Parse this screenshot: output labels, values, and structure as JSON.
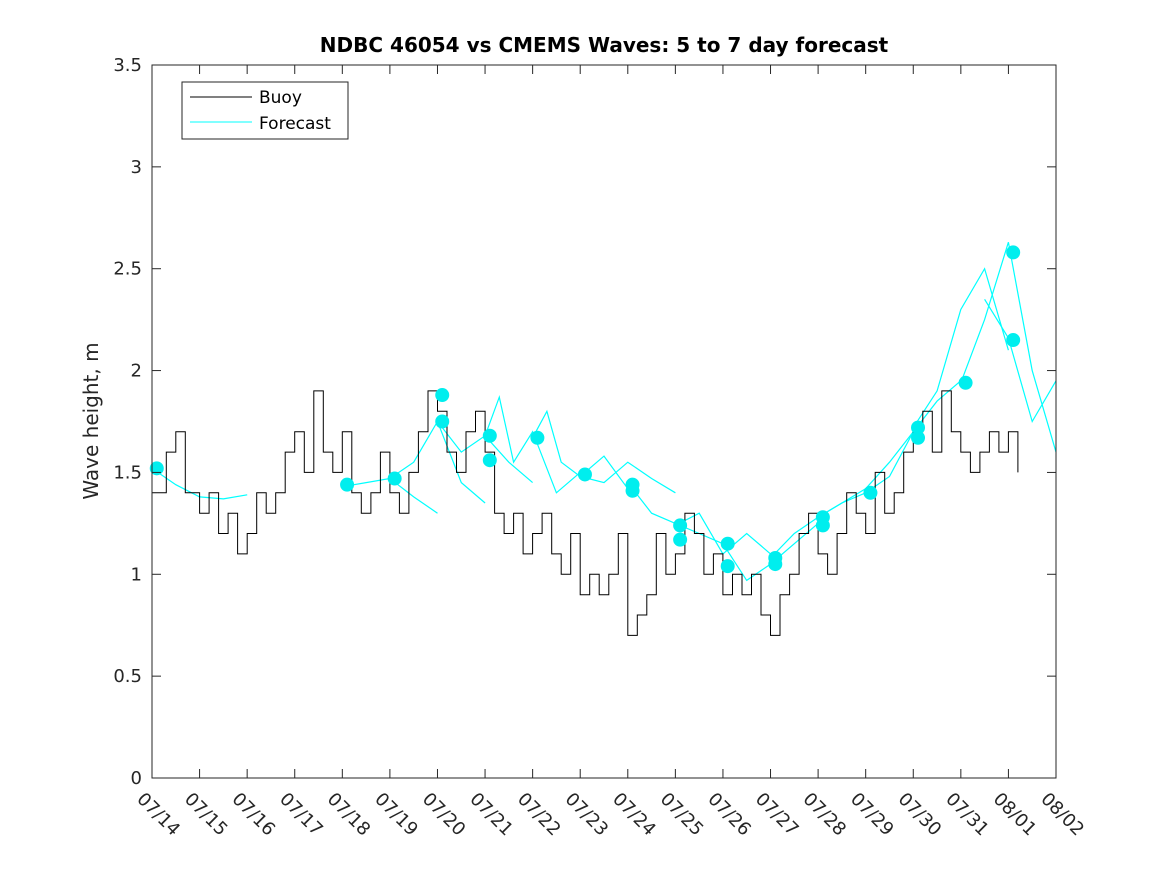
{
  "chart_data": {
    "type": "line",
    "title": "NDBC 46054 vs CMEMS Waves: 5 to 7 day forecast",
    "xlabel": "",
    "ylabel": "Wave height, m",
    "x_unit": "days since 07/14",
    "xlim": [
      0,
      19
    ],
    "ylim": [
      0,
      3.5
    ],
    "yticks": [
      0,
      0.5,
      1,
      1.5,
      2,
      2.5,
      3,
      3.5
    ],
    "ytick_labels": [
      "0",
      "0.5",
      "1",
      "1.5",
      "2",
      "2.5",
      "3",
      "3.5"
    ],
    "xtick_labels": [
      "07/14",
      "07/15",
      "07/16",
      "07/17",
      "07/18",
      "07/19",
      "07/20",
      "07/21",
      "07/22",
      "07/23",
      "07/24",
      "07/25",
      "07/26",
      "07/27",
      "07/28",
      "07/29",
      "07/30",
      "07/31",
      "08/01",
      "08/02"
    ],
    "grid": false,
    "legend": {
      "placement": "top-left",
      "entries": [
        "Buoy",
        "Forecast"
      ]
    },
    "colors": {
      "buoy": "#000000",
      "forecast": "#00ffff",
      "marker": "#00eeee"
    },
    "buoy": {
      "name": "Buoy",
      "x": [
        0,
        0.3,
        0.5,
        0.7,
        1,
        1.2,
        1.4,
        1.6,
        1.8,
        2,
        2.2,
        2.4,
        2.6,
        2.8,
        3,
        3.2,
        3.4,
        3.6,
        3.8,
        4,
        4.2,
        4.4,
        4.6,
        4.8,
        5,
        5.2,
        5.4,
        5.6,
        5.8,
        6,
        6.2,
        6.4,
        6.6,
        6.8,
        7,
        7.2,
        7.4,
        7.6,
        7.8,
        8,
        8.2,
        8.4,
        8.6,
        8.8,
        9,
        9.2,
        9.4,
        9.6,
        9.8,
        10,
        10.2,
        10.4,
        10.6,
        10.8,
        11,
        11.2,
        11.4,
        11.6,
        11.8,
        12,
        12.2,
        12.4,
        12.6,
        12.8,
        13,
        13.2,
        13.4,
        13.6,
        13.8,
        14,
        14.2,
        14.4,
        14.6,
        14.8,
        15,
        15.2,
        15.4,
        15.6,
        15.8,
        16,
        16.2,
        16.4,
        16.6,
        16.8,
        17,
        17.2,
        17.4,
        17.6,
        17.8,
        18,
        18.2
      ],
      "y": [
        1.4,
        1.6,
        1.7,
        1.4,
        1.3,
        1.4,
        1.2,
        1.3,
        1.1,
        1.2,
        1.4,
        1.3,
        1.4,
        1.6,
        1.7,
        1.5,
        1.9,
        1.6,
        1.5,
        1.7,
        1.4,
        1.3,
        1.4,
        1.6,
        1.4,
        1.3,
        1.5,
        1.7,
        1.9,
        1.8,
        1.6,
        1.5,
        1.7,
        1.8,
        1.6,
        1.3,
        1.2,
        1.3,
        1.1,
        1.2,
        1.3,
        1.1,
        1.0,
        1.2,
        0.9,
        1.0,
        0.9,
        1.0,
        1.2,
        0.7,
        0.8,
        0.9,
        1.2,
        1.0,
        1.1,
        1.3,
        1.2,
        1.0,
        1.1,
        0.9,
        1.0,
        0.9,
        1.0,
        0.8,
        0.7,
        0.9,
        1.0,
        1.2,
        1.3,
        1.1,
        1.0,
        1.2,
        1.4,
        1.3,
        1.2,
        1.5,
        1.3,
        1.4,
        1.6,
        1.7,
        1.8,
        1.6,
        1.9,
        1.7,
        1.6,
        1.5,
        1.6,
        1.7,
        1.6,
        1.7,
        1.5
      ]
    },
    "forecast": {
      "name": "Forecast",
      "runs": [
        {
          "x": [
            0,
            0.5,
            1,
            1.5,
            2
          ],
          "y": [
            1.52,
            1.44,
            1.38,
            1.37,
            1.39
          ]
        },
        {
          "x": [
            4,
            4.5,
            5,
            5.5,
            6
          ],
          "y": [
            1.43,
            1.45,
            1.47,
            1.38,
            1.3
          ]
        },
        {
          "x": [
            5,
            5.5,
            6,
            6.5,
            7
          ],
          "y": [
            1.47,
            1.55,
            1.75,
            1.45,
            1.35
          ]
        },
        {
          "x": [
            6,
            6.5,
            7,
            7.5,
            8
          ],
          "y": [
            1.75,
            1.6,
            1.68,
            1.55,
            1.45
          ]
        },
        {
          "x": [
            7,
            7.3,
            7.6,
            8,
            8.5,
            9
          ],
          "y": [
            1.68,
            1.87,
            1.55,
            1.7,
            1.4,
            1.5
          ]
        },
        {
          "x": [
            8,
            8.3,
            8.6,
            9,
            9.5,
            10
          ],
          "y": [
            1.67,
            1.8,
            1.55,
            1.48,
            1.58,
            1.42
          ]
        },
        {
          "x": [
            9,
            9.5,
            10,
            10.5,
            11
          ],
          "y": [
            1.48,
            1.45,
            1.55,
            1.47,
            1.4
          ]
        },
        {
          "x": [
            10,
            10.5,
            11,
            11.5,
            12
          ],
          "y": [
            1.45,
            1.3,
            1.25,
            1.2,
            1.15
          ]
        },
        {
          "x": [
            11,
            11.5,
            12,
            12.5,
            13
          ],
          "y": [
            1.24,
            1.3,
            1.1,
            1.2,
            1.1
          ]
        },
        {
          "x": [
            12,
            12.5,
            13,
            13.5,
            14
          ],
          "y": [
            1.15,
            0.97,
            1.05,
            1.15,
            1.25
          ]
        },
        {
          "x": [
            13,
            13.5,
            14,
            14.5,
            15
          ],
          "y": [
            1.08,
            1.2,
            1.28,
            1.35,
            1.4
          ]
        },
        {
          "x": [
            14,
            14.5,
            15,
            15.5,
            16
          ],
          "y": [
            1.28,
            1.35,
            1.42,
            1.55,
            1.7
          ]
        },
        {
          "x": [
            15,
            15.5,
            16,
            16.5,
            17
          ],
          "y": [
            1.4,
            1.48,
            1.7,
            1.85,
            1.95
          ]
        },
        {
          "x": [
            16,
            16.5,
            17,
            17.5,
            18
          ],
          "y": [
            1.72,
            1.9,
            2.3,
            2.5,
            2.1
          ]
        },
        {
          "x": [
            17,
            17.5,
            18,
            18.5,
            19
          ],
          "y": [
            1.94,
            2.25,
            2.63,
            2.0,
            1.6
          ]
        },
        {
          "x": [
            17.5,
            18,
            18.5,
            19
          ],
          "y": [
            2.35,
            2.16,
            1.75,
            1.95
          ]
        }
      ],
      "markers": [
        {
          "x": 0.1,
          "y": 1.52
        },
        {
          "x": 4.1,
          "y": 1.44
        },
        {
          "x": 5.1,
          "y": 1.47
        },
        {
          "x": 6.1,
          "y": 1.88
        },
        {
          "x": 6.1,
          "y": 1.75
        },
        {
          "x": 7.1,
          "y": 1.68
        },
        {
          "x": 7.1,
          "y": 1.56
        },
        {
          "x": 8.1,
          "y": 1.67
        },
        {
          "x": 9.1,
          "y": 1.49
        },
        {
          "x": 10.1,
          "y": 1.44
        },
        {
          "x": 10.1,
          "y": 1.41
        },
        {
          "x": 11.1,
          "y": 1.24
        },
        {
          "x": 11.1,
          "y": 1.17
        },
        {
          "x": 12.1,
          "y": 1.15
        },
        {
          "x": 12.1,
          "y": 1.04
        },
        {
          "x": 13.1,
          "y": 1.08
        },
        {
          "x": 13.1,
          "y": 1.05
        },
        {
          "x": 14.1,
          "y": 1.28
        },
        {
          "x": 14.1,
          "y": 1.24
        },
        {
          "x": 15.1,
          "y": 1.4
        },
        {
          "x": 16.1,
          "y": 1.72
        },
        {
          "x": 16.1,
          "y": 1.67
        },
        {
          "x": 17.1,
          "y": 1.94
        },
        {
          "x": 18.1,
          "y": 2.58
        },
        {
          "x": 18.1,
          "y": 2.15
        }
      ]
    }
  }
}
